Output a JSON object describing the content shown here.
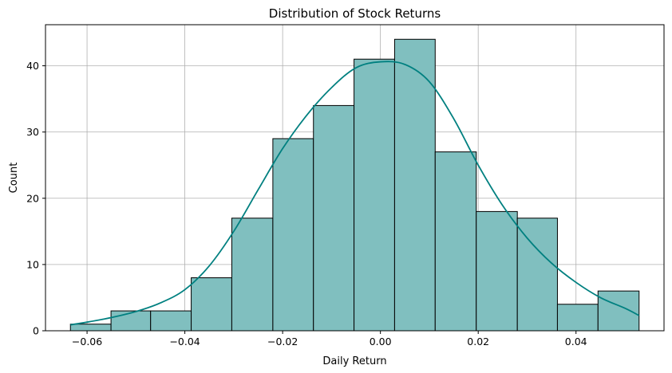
{
  "chart_data": {
    "type": "bar",
    "subtype": "histogram-with-kde",
    "title": "Distribution of Stock Returns",
    "xlabel": "Daily Return",
    "ylabel": "Count",
    "xlim": [
      -0.0685,
      0.058
    ],
    "ylim": [
      0,
      46.2
    ],
    "grid": true,
    "bin_edges": [
      -0.0634,
      -0.0551,
      -0.047,
      -0.0387,
      -0.0304,
      -0.022,
      -0.0137,
      -0.0054,
      0.0029,
      0.0112,
      0.0196,
      0.028,
      0.0362,
      0.0445,
      0.0529
    ],
    "values": [
      1,
      3,
      3,
      8,
      17,
      29,
      34,
      41,
      44,
      27,
      18,
      17,
      4,
      6
    ],
    "x_ticks": [
      -0.06,
      -0.04,
      -0.02,
      0.0,
      0.02,
      0.04
    ],
    "x_tick_labels": [
      "−0.06",
      "−0.04",
      "−0.02",
      "0.00",
      "0.02",
      "0.04"
    ],
    "y_ticks": [
      0,
      10,
      20,
      30,
      40
    ],
    "y_tick_labels": [
      "0",
      "10",
      "20",
      "30",
      "40"
    ],
    "kde": {
      "x": [
        -0.0634,
        -0.06,
        -0.055,
        -0.05,
        -0.045,
        -0.04,
        -0.035,
        -0.03,
        -0.025,
        -0.02,
        -0.015,
        -0.01,
        -0.005,
        0.0,
        0.005,
        0.01,
        0.015,
        0.02,
        0.025,
        0.03,
        0.035,
        0.04,
        0.045,
        0.05,
        0.0529
      ],
      "y": [
        0.9,
        1.3,
        2.0,
        2.9,
        4.2,
        6.2,
        9.8,
        15.0,
        21.3,
        27.5,
        32.6,
        36.7,
        39.7,
        40.6,
        40.2,
        37.6,
        32.0,
        25.0,
        18.9,
        14.0,
        10.2,
        7.3,
        5.0,
        3.4,
        2.3
      ]
    },
    "colors": {
      "bar_fill": "#80bfbf",
      "bar_edge": "#000000",
      "kde_line": "#008080",
      "grid": "#b0b0b0"
    }
  }
}
